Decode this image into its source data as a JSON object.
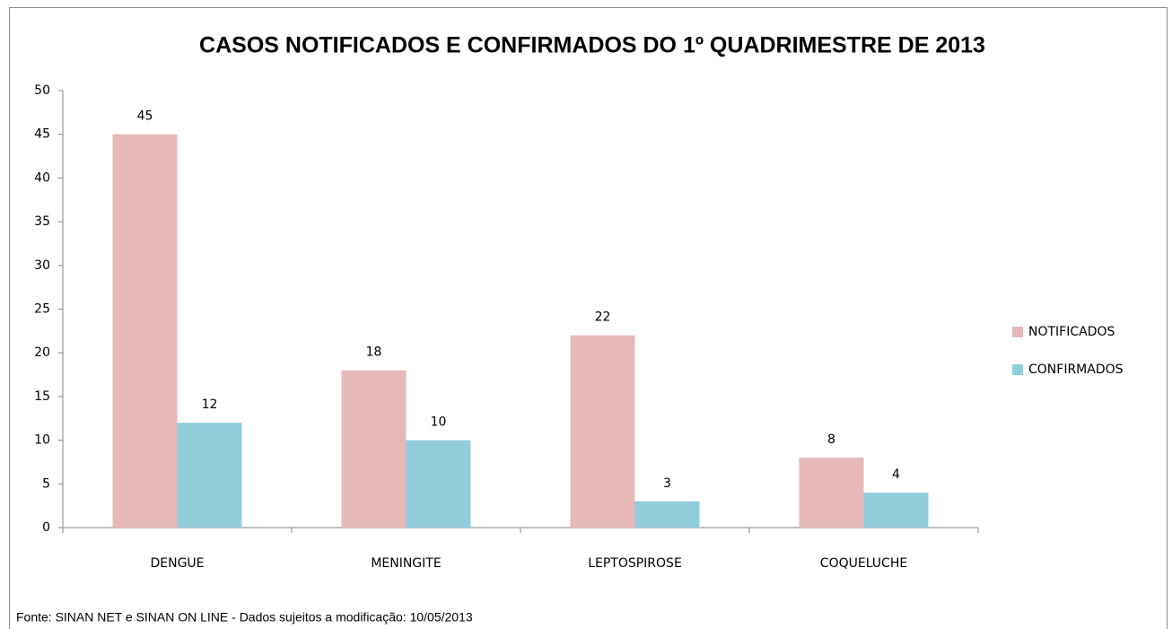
{
  "chart_data": {
    "type": "bar",
    "title": "CASOS NOTIFICADOS E CONFIRMADOS DO 1º QUADRIMESTRE DE 2013",
    "categories": [
      "DENGUE",
      "MENINGITE",
      "LEPTOSPIROSE",
      "COQUELUCHE"
    ],
    "series": [
      {
        "name": "NOTIFICADOS",
        "color": "#e6b9b8",
        "values": [
          45,
          18,
          22,
          8
        ]
      },
      {
        "name": "CONFIRMADOS",
        "color": "#92cddc",
        "values": [
          12,
          10,
          3,
          4
        ]
      }
    ],
    "ylim": [
      0,
      50
    ],
    "yticks": [
      0,
      5,
      10,
      15,
      20,
      25,
      30,
      35,
      40,
      45,
      50
    ],
    "grid": false,
    "legend": "right",
    "source": "Fonte: SINAN NET e SINAN ON LINE - Dados sujeitos a modificação: 10/05/2013"
  }
}
